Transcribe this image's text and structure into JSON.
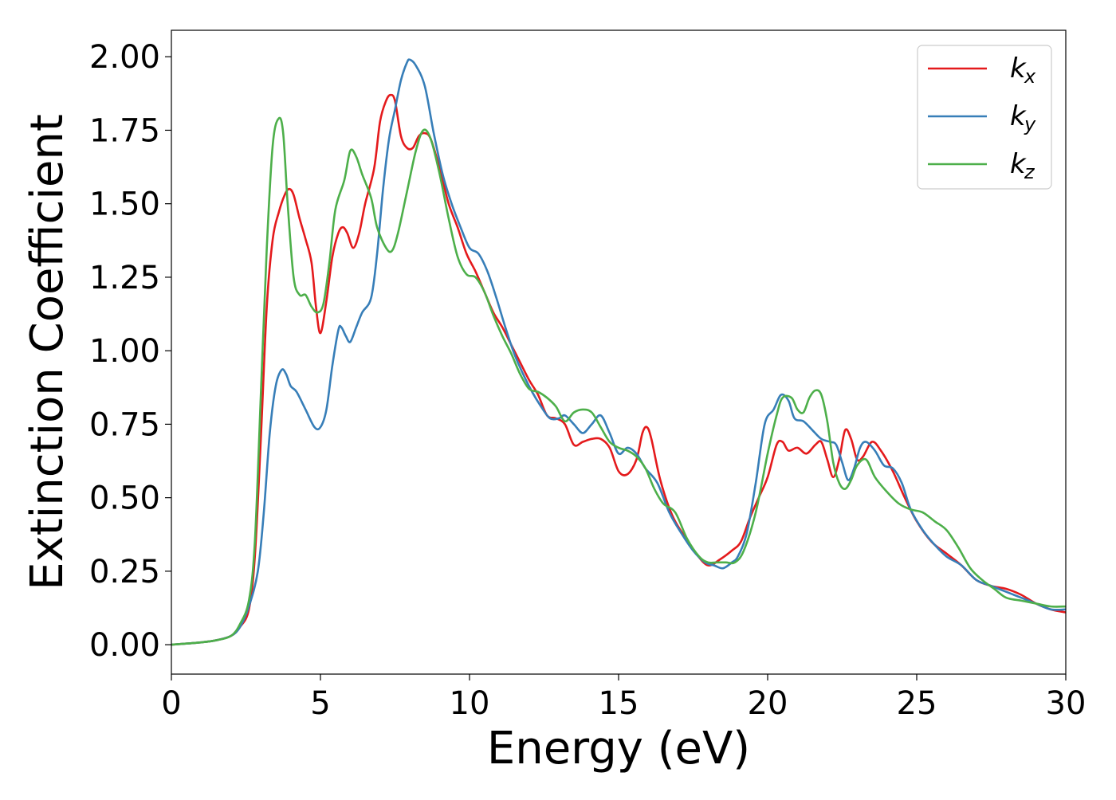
{
  "chart_data": {
    "type": "line",
    "title": "",
    "xlabel": "Energy (eV)",
    "ylabel": "Extinction Coefficient",
    "xlim": [
      0,
      30
    ],
    "ylim": [
      -0.1,
      2.09
    ],
    "xticks": [
      0,
      5,
      10,
      15,
      20,
      25,
      30
    ],
    "xtick_labels": [
      "0",
      "5",
      "10",
      "15",
      "20",
      "25",
      "30"
    ],
    "yticks": [
      0.0,
      0.25,
      0.5,
      0.75,
      1.0,
      1.25,
      1.5,
      1.75,
      2.0
    ],
    "ytick_labels": [
      "0.00",
      "0.25",
      "0.50",
      "0.75",
      "1.00",
      "1.25",
      "1.50",
      "1.75",
      "2.00"
    ],
    "grid": false,
    "legend": {
      "position": "top-right",
      "entries": [
        {
          "base": "k",
          "sub": "x",
          "color": "#e41a1c"
        },
        {
          "base": "k",
          "sub": "y",
          "color": "#377eb8"
        },
        {
          "base": "k",
          "sub": "z",
          "color": "#4daf4a"
        }
      ]
    },
    "series": [
      {
        "name": "kx",
        "color": "#e41a1c",
        "points": [
          [
            0,
            0
          ],
          [
            1,
            0.008
          ],
          [
            1.5,
            0.015
          ],
          [
            2,
            0.03
          ],
          [
            2.3,
            0.06
          ],
          [
            2.6,
            0.12
          ],
          [
            2.8,
            0.3
          ],
          [
            3.0,
            0.7
          ],
          [
            3.2,
            1.15
          ],
          [
            3.4,
            1.38
          ],
          [
            3.6,
            1.47
          ],
          [
            3.8,
            1.53
          ],
          [
            3.95,
            1.55
          ],
          [
            4.1,
            1.53
          ],
          [
            4.3,
            1.45
          ],
          [
            4.5,
            1.38
          ],
          [
            4.7,
            1.3
          ],
          [
            4.85,
            1.15
          ],
          [
            5.0,
            1.06
          ],
          [
            5.2,
            1.17
          ],
          [
            5.4,
            1.32
          ],
          [
            5.6,
            1.4
          ],
          [
            5.75,
            1.42
          ],
          [
            5.9,
            1.4
          ],
          [
            6.1,
            1.35
          ],
          [
            6.3,
            1.4
          ],
          [
            6.5,
            1.5
          ],
          [
            6.8,
            1.62
          ],
          [
            7.0,
            1.78
          ],
          [
            7.2,
            1.85
          ],
          [
            7.35,
            1.87
          ],
          [
            7.5,
            1.85
          ],
          [
            7.7,
            1.73
          ],
          [
            7.9,
            1.69
          ],
          [
            8.1,
            1.69
          ],
          [
            8.3,
            1.73
          ],
          [
            8.5,
            1.74
          ],
          [
            8.7,
            1.72
          ],
          [
            9.0,
            1.62
          ],
          [
            9.3,
            1.5
          ],
          [
            9.6,
            1.42
          ],
          [
            9.9,
            1.33
          ],
          [
            10.2,
            1.27
          ],
          [
            10.5,
            1.2
          ],
          [
            10.8,
            1.13
          ],
          [
            11.1,
            1.08
          ],
          [
            11.4,
            1.02
          ],
          [
            11.7,
            0.96
          ],
          [
            12.0,
            0.9
          ],
          [
            12.3,
            0.85
          ],
          [
            12.6,
            0.78
          ],
          [
            12.9,
            0.77
          ],
          [
            13.2,
            0.75
          ],
          [
            13.5,
            0.68
          ],
          [
            13.8,
            0.69
          ],
          [
            14.1,
            0.7
          ],
          [
            14.4,
            0.7
          ],
          [
            14.7,
            0.67
          ],
          [
            15.0,
            0.59
          ],
          [
            15.3,
            0.58
          ],
          [
            15.6,
            0.63
          ],
          [
            15.8,
            0.72
          ],
          [
            15.95,
            0.74
          ],
          [
            16.1,
            0.7
          ],
          [
            16.4,
            0.56
          ],
          [
            16.8,
            0.44
          ],
          [
            17.2,
            0.37
          ],
          [
            17.6,
            0.31
          ],
          [
            18.0,
            0.27
          ],
          [
            18.4,
            0.29
          ],
          [
            18.8,
            0.32
          ],
          [
            19.1,
            0.35
          ],
          [
            19.4,
            0.43
          ],
          [
            19.7,
            0.5
          ],
          [
            20.0,
            0.57
          ],
          [
            20.3,
            0.68
          ],
          [
            20.5,
            0.69
          ],
          [
            20.7,
            0.66
          ],
          [
            21.0,
            0.67
          ],
          [
            21.3,
            0.65
          ],
          [
            21.6,
            0.68
          ],
          [
            21.8,
            0.69
          ],
          [
            22.0,
            0.63
          ],
          [
            22.2,
            0.57
          ],
          [
            22.4,
            0.63
          ],
          [
            22.6,
            0.73
          ],
          [
            22.8,
            0.7
          ],
          [
            23.0,
            0.63
          ],
          [
            23.2,
            0.64
          ],
          [
            23.5,
            0.69
          ],
          [
            23.8,
            0.66
          ],
          [
            24.2,
            0.59
          ],
          [
            24.6,
            0.5
          ],
          [
            25.0,
            0.42
          ],
          [
            25.5,
            0.35
          ],
          [
            26.0,
            0.31
          ],
          [
            26.5,
            0.27
          ],
          [
            27.0,
            0.22
          ],
          [
            27.5,
            0.2
          ],
          [
            28.0,
            0.19
          ],
          [
            28.5,
            0.17
          ],
          [
            29.0,
            0.14
          ],
          [
            29.5,
            0.12
          ],
          [
            30,
            0.11
          ]
        ]
      },
      {
        "name": "ky",
        "color": "#377eb8",
        "points": [
          [
            0,
            0
          ],
          [
            1,
            0.008
          ],
          [
            1.5,
            0.015
          ],
          [
            2,
            0.03
          ],
          [
            2.3,
            0.06
          ],
          [
            2.6,
            0.13
          ],
          [
            2.9,
            0.25
          ],
          [
            3.1,
            0.45
          ],
          [
            3.3,
            0.72
          ],
          [
            3.5,
            0.88
          ],
          [
            3.7,
            0.935
          ],
          [
            3.85,
            0.92
          ],
          [
            4.0,
            0.88
          ],
          [
            4.2,
            0.86
          ],
          [
            4.5,
            0.8
          ],
          [
            4.8,
            0.74
          ],
          [
            5.0,
            0.74
          ],
          [
            5.2,
            0.8
          ],
          [
            5.4,
            0.95
          ],
          [
            5.6,
            1.07
          ],
          [
            5.7,
            1.08
          ],
          [
            5.85,
            1.05
          ],
          [
            6.0,
            1.03
          ],
          [
            6.2,
            1.08
          ],
          [
            6.4,
            1.13
          ],
          [
            6.7,
            1.18
          ],
          [
            6.9,
            1.33
          ],
          [
            7.1,
            1.55
          ],
          [
            7.3,
            1.72
          ],
          [
            7.5,
            1.82
          ],
          [
            7.7,
            1.92
          ],
          [
            7.9,
            1.98
          ],
          [
            8.0,
            1.99
          ],
          [
            8.2,
            1.97
          ],
          [
            8.5,
            1.9
          ],
          [
            8.8,
            1.74
          ],
          [
            9.1,
            1.6
          ],
          [
            9.4,
            1.5
          ],
          [
            9.7,
            1.42
          ],
          [
            10.0,
            1.35
          ],
          [
            10.3,
            1.33
          ],
          [
            10.6,
            1.27
          ],
          [
            10.9,
            1.18
          ],
          [
            11.2,
            1.08
          ],
          [
            11.5,
            0.99
          ],
          [
            11.8,
            0.92
          ],
          [
            12.1,
            0.86
          ],
          [
            12.4,
            0.81
          ],
          [
            12.7,
            0.77
          ],
          [
            13.0,
            0.77
          ],
          [
            13.2,
            0.78
          ],
          [
            13.5,
            0.75
          ],
          [
            13.8,
            0.72
          ],
          [
            14.1,
            0.75
          ],
          [
            14.4,
            0.78
          ],
          [
            14.7,
            0.72
          ],
          [
            15.0,
            0.65
          ],
          [
            15.3,
            0.67
          ],
          [
            15.6,
            0.65
          ],
          [
            15.9,
            0.6
          ],
          [
            16.3,
            0.55
          ],
          [
            16.7,
            0.45
          ],
          [
            17.1,
            0.38
          ],
          [
            17.5,
            0.32
          ],
          [
            17.9,
            0.28
          ],
          [
            18.2,
            0.27
          ],
          [
            18.5,
            0.26
          ],
          [
            18.8,
            0.28
          ],
          [
            19.0,
            0.3
          ],
          [
            19.3,
            0.38
          ],
          [
            19.6,
            0.55
          ],
          [
            19.9,
            0.75
          ],
          [
            20.2,
            0.8
          ],
          [
            20.45,
            0.85
          ],
          [
            20.7,
            0.83
          ],
          [
            20.9,
            0.77
          ],
          [
            21.2,
            0.76
          ],
          [
            21.5,
            0.73
          ],
          [
            21.8,
            0.7
          ],
          [
            22.1,
            0.69
          ],
          [
            22.3,
            0.68
          ],
          [
            22.5,
            0.62
          ],
          [
            22.7,
            0.56
          ],
          [
            22.9,
            0.6
          ],
          [
            23.1,
            0.67
          ],
          [
            23.3,
            0.69
          ],
          [
            23.6,
            0.66
          ],
          [
            23.9,
            0.61
          ],
          [
            24.2,
            0.6
          ],
          [
            24.5,
            0.55
          ],
          [
            24.8,
            0.46
          ],
          [
            25.2,
            0.39
          ],
          [
            25.6,
            0.34
          ],
          [
            26.0,
            0.3
          ],
          [
            26.5,
            0.27
          ],
          [
            27.0,
            0.22
          ],
          [
            27.5,
            0.2
          ],
          [
            28.0,
            0.18
          ],
          [
            28.5,
            0.16
          ],
          [
            29.0,
            0.14
          ],
          [
            29.5,
            0.12
          ],
          [
            30,
            0.12
          ]
        ]
      },
      {
        "name": "kz",
        "color": "#4daf4a",
        "points": [
          [
            0,
            0
          ],
          [
            1,
            0.008
          ],
          [
            1.5,
            0.015
          ],
          [
            2,
            0.03
          ],
          [
            2.3,
            0.07
          ],
          [
            2.6,
            0.15
          ],
          [
            2.8,
            0.35
          ],
          [
            3.0,
            0.85
          ],
          [
            3.2,
            1.35
          ],
          [
            3.4,
            1.7
          ],
          [
            3.6,
            1.79
          ],
          [
            3.75,
            1.74
          ],
          [
            3.9,
            1.5
          ],
          [
            4.1,
            1.25
          ],
          [
            4.3,
            1.19
          ],
          [
            4.5,
            1.19
          ],
          [
            4.7,
            1.15
          ],
          [
            4.9,
            1.13
          ],
          [
            5.1,
            1.16
          ],
          [
            5.3,
            1.3
          ],
          [
            5.5,
            1.48
          ],
          [
            5.8,
            1.58
          ],
          [
            6.0,
            1.68
          ],
          [
            6.2,
            1.66
          ],
          [
            6.4,
            1.6
          ],
          [
            6.7,
            1.52
          ],
          [
            6.9,
            1.42
          ],
          [
            7.2,
            1.35
          ],
          [
            7.4,
            1.34
          ],
          [
            7.6,
            1.4
          ],
          [
            7.9,
            1.54
          ],
          [
            8.2,
            1.68
          ],
          [
            8.45,
            1.75
          ],
          [
            8.7,
            1.72
          ],
          [
            9.0,
            1.6
          ],
          [
            9.3,
            1.45
          ],
          [
            9.6,
            1.32
          ],
          [
            9.9,
            1.26
          ],
          [
            10.2,
            1.25
          ],
          [
            10.5,
            1.2
          ],
          [
            10.8,
            1.12
          ],
          [
            11.1,
            1.05
          ],
          [
            11.4,
            0.99
          ],
          [
            11.7,
            0.92
          ],
          [
            12.0,
            0.87
          ],
          [
            12.3,
            0.86
          ],
          [
            12.6,
            0.84
          ],
          [
            12.9,
            0.81
          ],
          [
            13.2,
            0.76
          ],
          [
            13.5,
            0.79
          ],
          [
            13.8,
            0.8
          ],
          [
            14.1,
            0.79
          ],
          [
            14.4,
            0.74
          ],
          [
            14.7,
            0.69
          ],
          [
            15.0,
            0.67
          ],
          [
            15.3,
            0.66
          ],
          [
            15.6,
            0.64
          ],
          [
            15.9,
            0.6
          ],
          [
            16.2,
            0.53
          ],
          [
            16.5,
            0.48
          ],
          [
            16.9,
            0.45
          ],
          [
            17.3,
            0.36
          ],
          [
            17.7,
            0.3
          ],
          [
            18.0,
            0.28
          ],
          [
            18.3,
            0.28
          ],
          [
            18.6,
            0.28
          ],
          [
            18.9,
            0.28
          ],
          [
            19.2,
            0.32
          ],
          [
            19.6,
            0.45
          ],
          [
            20.0,
            0.65
          ],
          [
            20.3,
            0.78
          ],
          [
            20.5,
            0.84
          ],
          [
            20.8,
            0.84
          ],
          [
            21.0,
            0.8
          ],
          [
            21.2,
            0.79
          ],
          [
            21.4,
            0.84
          ],
          [
            21.6,
            0.865
          ],
          [
            21.8,
            0.85
          ],
          [
            22.0,
            0.76
          ],
          [
            22.2,
            0.62
          ],
          [
            22.4,
            0.55
          ],
          [
            22.6,
            0.53
          ],
          [
            22.8,
            0.56
          ],
          [
            23.0,
            0.61
          ],
          [
            23.3,
            0.63
          ],
          [
            23.6,
            0.57
          ],
          [
            24.0,
            0.52
          ],
          [
            24.4,
            0.48
          ],
          [
            24.8,
            0.46
          ],
          [
            25.2,
            0.45
          ],
          [
            25.6,
            0.42
          ],
          [
            26.0,
            0.39
          ],
          [
            26.4,
            0.33
          ],
          [
            26.8,
            0.26
          ],
          [
            27.2,
            0.22
          ],
          [
            27.6,
            0.19
          ],
          [
            28.0,
            0.16
          ],
          [
            28.5,
            0.15
          ],
          [
            29.0,
            0.14
          ],
          [
            29.5,
            0.13
          ],
          [
            30,
            0.13
          ]
        ]
      }
    ]
  }
}
